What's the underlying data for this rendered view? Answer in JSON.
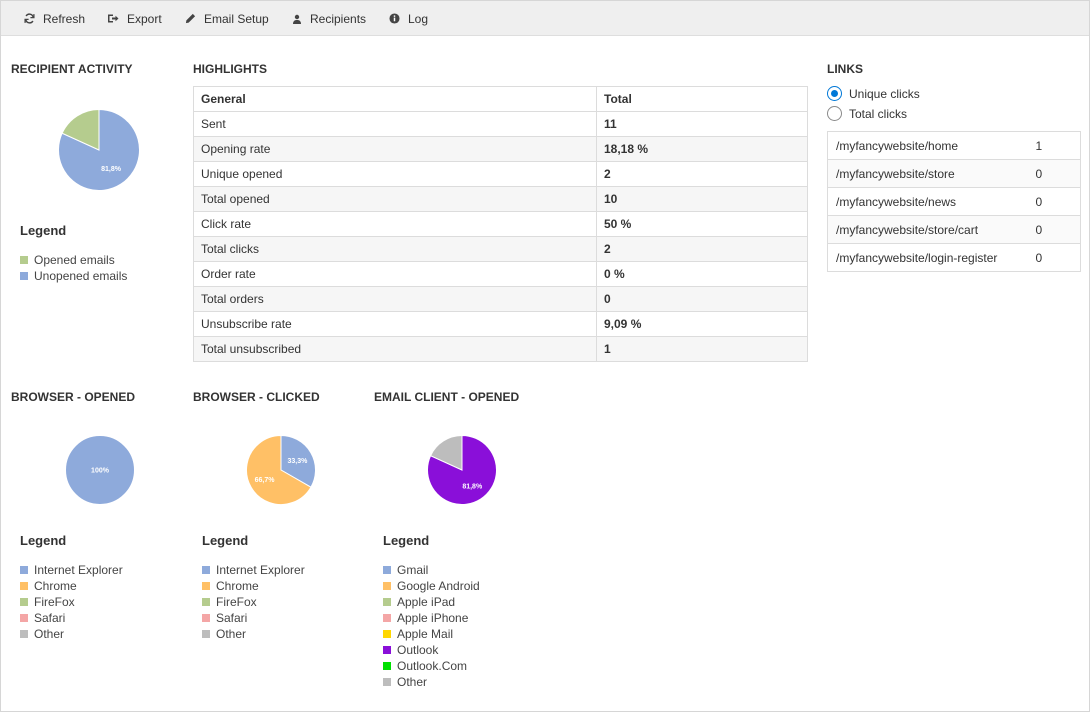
{
  "toolbar": {
    "items": [
      {
        "label": "Refresh",
        "icon": "refresh-icon"
      },
      {
        "label": "Export",
        "icon": "export-icon"
      },
      {
        "label": "Email Setup",
        "icon": "pencil-icon"
      },
      {
        "label": "Recipients",
        "icon": "person-icon"
      },
      {
        "label": "Log",
        "icon": "info-icon"
      }
    ]
  },
  "recipient_activity": {
    "title": "RECIPIENT ACTIVITY",
    "pie_label": "81,8%",
    "legend_title": "Legend",
    "legend": [
      {
        "label": "Opened emails",
        "color": "#b5cc8e"
      },
      {
        "label": "Unopened emails",
        "color": "#8eaadb"
      }
    ]
  },
  "highlights": {
    "title": "HIGHLIGHTS",
    "headers": [
      "General",
      "Total"
    ],
    "rows": [
      {
        "label": "Sent",
        "value": "11"
      },
      {
        "label": "Opening rate",
        "value": "18,18 %"
      },
      {
        "label": "Unique opened",
        "value": "2"
      },
      {
        "label": "Total opened",
        "value": "10"
      },
      {
        "label": "Click rate",
        "value": "50 %"
      },
      {
        "label": "Total clicks",
        "value": "2"
      },
      {
        "label": "Order rate",
        "value": "0 %"
      },
      {
        "label": "Total orders",
        "value": "0"
      },
      {
        "label": "Unsubscribe rate",
        "value": "9,09 %"
      },
      {
        "label": "Total unsubscribed",
        "value": "1"
      }
    ]
  },
  "links": {
    "title": "LINKS",
    "options": [
      {
        "label": "Unique clicks",
        "selected": true
      },
      {
        "label": "Total clicks",
        "selected": false
      }
    ],
    "rows": [
      {
        "url": "/myfancywebsite/home",
        "count": "1"
      },
      {
        "url": "/myfancywebsite/store",
        "count": "0"
      },
      {
        "url": "/myfancywebsite/news",
        "count": "0"
      },
      {
        "url": "/myfancywebsite/store/cart",
        "count": "0"
      },
      {
        "url": "/myfancywebsite/login-register",
        "count": "0"
      }
    ]
  },
  "browser_opened": {
    "title": "BROWSER - OPENED",
    "pie_label": "100%",
    "legend_title": "Legend",
    "legend": [
      {
        "label": "Internet Explorer",
        "color": "#8eaadb"
      },
      {
        "label": "Chrome",
        "color": "#ffc066"
      },
      {
        "label": "FireFox",
        "color": "#b5cc8e"
      },
      {
        "label": "Safari",
        "color": "#f4a6a6"
      },
      {
        "label": "Other",
        "color": "#bdbdbd"
      }
    ]
  },
  "browser_clicked": {
    "title": "BROWSER - CLICKED",
    "pie_labels": [
      "33,3%",
      "66,7%"
    ],
    "legend_title": "Legend",
    "legend": [
      {
        "label": "Internet Explorer",
        "color": "#8eaadb"
      },
      {
        "label": "Chrome",
        "color": "#ffc066"
      },
      {
        "label": "FireFox",
        "color": "#b5cc8e"
      },
      {
        "label": "Safari",
        "color": "#f4a6a6"
      },
      {
        "label": "Other",
        "color": "#bdbdbd"
      }
    ]
  },
  "email_client": {
    "title": "EMAIL CLIENT - OPENED",
    "pie_label": "81,8%",
    "legend_title": "Legend",
    "legend": [
      {
        "label": "Gmail",
        "color": "#8eaadb"
      },
      {
        "label": "Google Android",
        "color": "#ffc066"
      },
      {
        "label": "Apple iPad",
        "color": "#b5cc8e"
      },
      {
        "label": "Apple iPhone",
        "color": "#f4a6a6"
      },
      {
        "label": "Apple Mail",
        "color": "#ffd700"
      },
      {
        "label": "Outlook",
        "color": "#8a0fd9"
      },
      {
        "label": "Outlook.Com",
        "color": "#00e000"
      },
      {
        "label": "Other",
        "color": "#bdbdbd"
      }
    ]
  },
  "chart_data": [
    {
      "type": "pie",
      "categories": [
        "Opened emails",
        "Unopened emails"
      ],
      "values": [
        18.2,
        81.8
      ],
      "colors": [
        "#b5cc8e",
        "#8eaadb"
      ]
    },
    {
      "type": "pie",
      "categories": [
        "Internet Explorer",
        "Chrome",
        "FireFox",
        "Safari",
        "Other"
      ],
      "values": [
        100,
        0,
        0,
        0,
        0
      ],
      "colors": [
        "#8eaadb",
        "#ffc066",
        "#b5cc8e",
        "#f4a6a6",
        "#bdbdbd"
      ]
    },
    {
      "type": "pie",
      "categories": [
        "Internet Explorer",
        "Chrome",
        "FireFox",
        "Safari",
        "Other"
      ],
      "values": [
        33.3,
        66.7,
        0,
        0,
        0
      ],
      "colors": [
        "#8eaadb",
        "#ffc066",
        "#b5cc8e",
        "#f4a6a6",
        "#bdbdbd"
      ]
    },
    {
      "type": "pie",
      "categories": [
        "Gmail",
        "Google Android",
        "Apple iPad",
        "Apple iPhone",
        "Apple Mail",
        "Outlook",
        "Outlook.Com",
        "Other"
      ],
      "values": [
        0,
        0,
        0,
        0,
        0,
        81.8,
        0,
        18.2
      ],
      "colors": [
        "#8eaadb",
        "#ffc066",
        "#b5cc8e",
        "#f4a6a6",
        "#ffd700",
        "#8a0fd9",
        "#00e000",
        "#bdbdbd"
      ]
    }
  ]
}
